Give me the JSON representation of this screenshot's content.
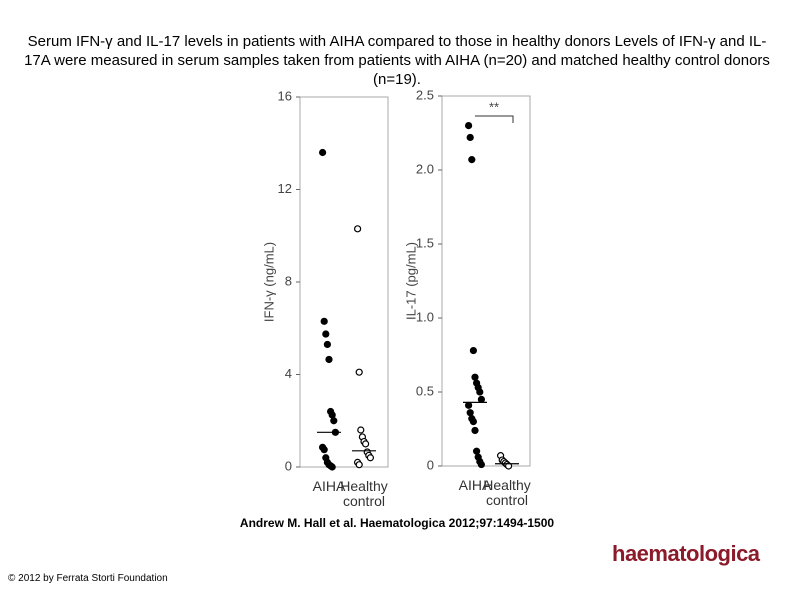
{
  "title": "Serum IFN-γ and IL-17 levels in patients with AIHA compared to those in healthy donors Levels of IFN-γ and IL-17A were measured in serum samples taken from patients with AIHA (n=20) and matched healthy control donors (n=19).",
  "citation": "Andrew M. Hall et al. Haematologica 2012;97:1494-1500",
  "copyright": "© 2012 by Ferrata Storti Foundation",
  "logo": "haematologica",
  "chart_data": [
    {
      "type": "strip",
      "y_label": "IFN-γ (ng/mL)",
      "categories": [
        "AIHA",
        "Healthy control"
      ],
      "ylim": [
        0,
        16
      ],
      "yticks": [
        0,
        4,
        8,
        12,
        16
      ],
      "series": [
        {
          "color": "#000000",
          "filled": true,
          "median": 1.5,
          "values": [
            13.6,
            6.3,
            5.75,
            5.3,
            4.65,
            2.4,
            2.25,
            2.0,
            1.5,
            0.85,
            0.75,
            0.4,
            0.2,
            0.1,
            0.05,
            0
          ]
        },
        {
          "color": "#000000",
          "filled": false,
          "median": 0.7,
          "values": [
            10.3,
            4.1,
            1.6,
            1.3,
            1.1,
            1.0,
            0.65,
            0.5,
            0.4,
            0.2,
            0.1
          ]
        }
      ]
    },
    {
      "type": "strip",
      "y_label": "IL-17 (pg/mL)",
      "categories": [
        "AIHA",
        "Healthy control"
      ],
      "ylim": [
        0,
        2.5
      ],
      "yticks": [
        0,
        0.5,
        {
          "value": 1,
          "label": "1.0"
        },
        1.5,
        {
          "value": 2,
          "label": "2.0"
        },
        2.5
      ],
      "annotation": "**",
      "series": [
        {
          "color": "#000000",
          "filled": true,
          "median": 0.43,
          "values": [
            2.3,
            2.22,
            2.07,
            0.78,
            0.6,
            0.56,
            0.53,
            0.5,
            0.45,
            0.41,
            0.36,
            0.32,
            0.3,
            0.24,
            0.1,
            0.06,
            0.03,
            0.01
          ]
        },
        {
          "color": "#000000",
          "filled": false,
          "median": 0.015,
          "values": [
            0.07,
            0.04,
            0.03,
            0.02,
            0.01,
            0
          ]
        }
      ]
    }
  ]
}
